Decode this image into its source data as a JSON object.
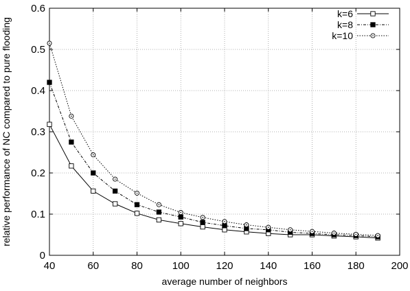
{
  "chart_data": {
    "type": "line",
    "title": "",
    "xlabel": "average number of neighbors",
    "ylabel": "relative performance of NC compared to pure flooding",
    "xlim": [
      40,
      200
    ],
    "ylim": [
      0,
      0.6
    ],
    "xticks": [
      40,
      60,
      80,
      100,
      120,
      140,
      160,
      180,
      200
    ],
    "yticks": [
      0,
      0.1,
      0.2,
      0.3,
      0.4,
      0.5,
      0.6
    ],
    "grid": true,
    "legend_position": "top-right",
    "x": [
      40,
      50,
      60,
      70,
      80,
      90,
      100,
      110,
      120,
      130,
      140,
      150,
      160,
      170,
      180,
      190
    ],
    "series": [
      {
        "name": "k=6",
        "marker": "open-square",
        "line": "solid",
        "values": [
          0.318,
          0.217,
          0.156,
          0.125,
          0.102,
          0.086,
          0.077,
          0.069,
          0.062,
          0.057,
          0.053,
          0.05,
          0.05,
          0.047,
          0.045,
          0.042
        ]
      },
      {
        "name": "k=8",
        "marker": "filled-square",
        "line": "dash-dot",
        "values": [
          0.42,
          0.275,
          0.2,
          0.156,
          0.123,
          0.105,
          0.093,
          0.08,
          0.072,
          0.065,
          0.062,
          0.056,
          0.053,
          0.05,
          0.048,
          0.045
        ]
      },
      {
        "name": "k=10",
        "marker": "open-circle",
        "line": "dotted",
        "values": [
          0.515,
          0.338,
          0.244,
          0.185,
          0.151,
          0.123,
          0.104,
          0.092,
          0.082,
          0.074,
          0.068,
          0.062,
          0.058,
          0.054,
          0.051,
          0.048
        ]
      }
    ]
  }
}
